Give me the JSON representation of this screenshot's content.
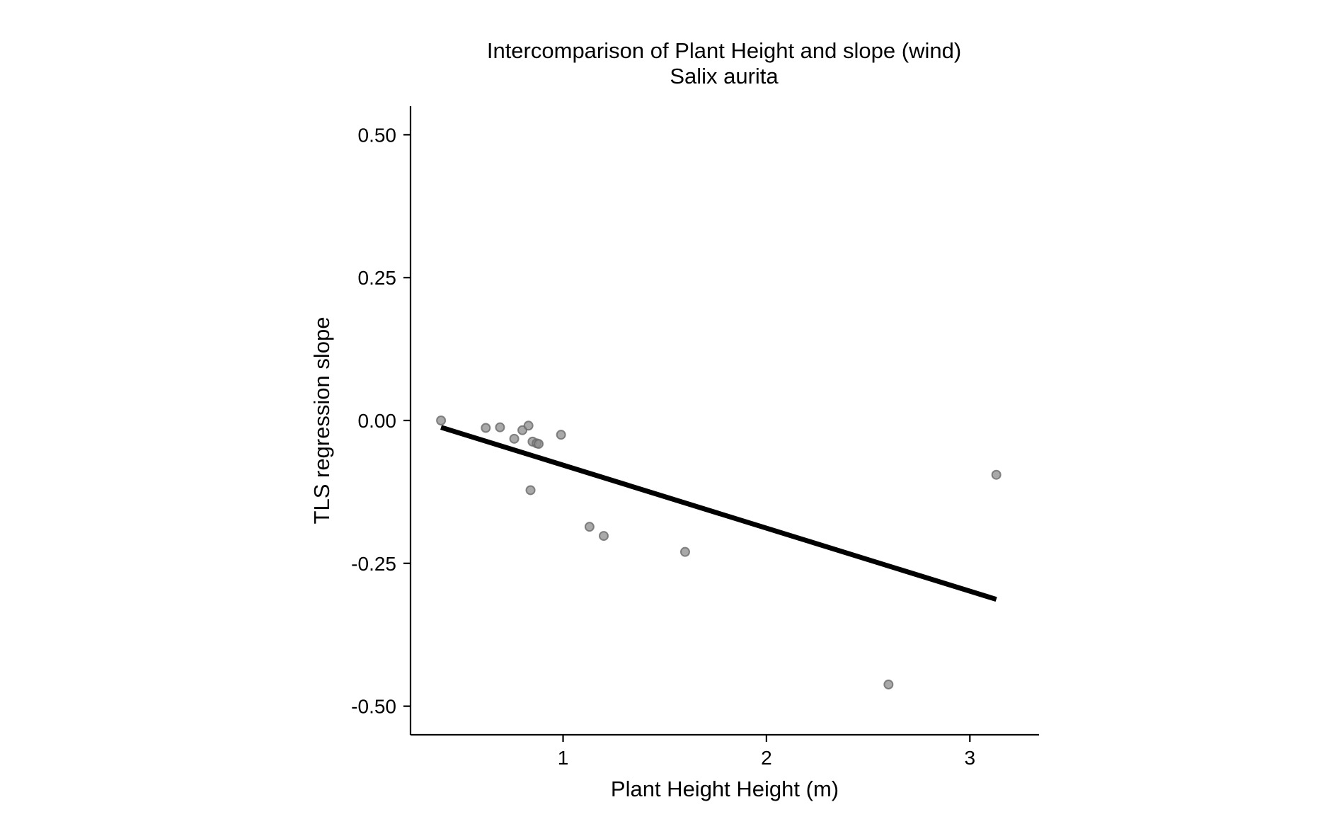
{
  "chart_data": {
    "type": "scatter",
    "title": "Intercomparison of Plant Height and slope (wind)",
    "subtitle": "Salix aurita",
    "xlabel": "Plant Height Height (m)",
    "ylabel": "TLS regression slope",
    "xlim": [
      0.25,
      3.34
    ],
    "ylim": [
      -0.55,
      0.55
    ],
    "x_ticks": [
      1,
      2,
      3
    ],
    "x_tick_labels": [
      "1",
      "2",
      "3"
    ],
    "y_ticks": [
      0.5,
      0.25,
      0.0,
      -0.25,
      -0.5
    ],
    "y_tick_labels": [
      "0.50",
      "0.25",
      "0.00",
      "-0.25",
      "-0.50"
    ],
    "grid": false,
    "point_color": "#8c8c8c",
    "point_edge_color": "#6a6a6a",
    "line_color": "#000000",
    "points": [
      {
        "x": 0.4,
        "y": 0.0
      },
      {
        "x": 0.62,
        "y": -0.013
      },
      {
        "x": 0.69,
        "y": -0.012
      },
      {
        "x": 0.76,
        "y": -0.032
      },
      {
        "x": 0.8,
        "y": -0.017
      },
      {
        "x": 0.83,
        "y": -0.009
      },
      {
        "x": 0.85,
        "y": -0.037
      },
      {
        "x": 0.87,
        "y": -0.04
      },
      {
        "x": 0.88,
        "y": -0.041
      },
      {
        "x": 0.99,
        "y": -0.025
      },
      {
        "x": 0.84,
        "y": -0.122
      },
      {
        "x": 1.13,
        "y": -0.186
      },
      {
        "x": 1.2,
        "y": -0.202
      },
      {
        "x": 1.6,
        "y": -0.23
      },
      {
        "x": 2.6,
        "y": -0.462
      },
      {
        "x": 3.13,
        "y": -0.095
      }
    ],
    "fit_line": {
      "x": [
        0.4,
        3.13
      ],
      "y": [
        -0.012,
        -0.313
      ]
    }
  }
}
